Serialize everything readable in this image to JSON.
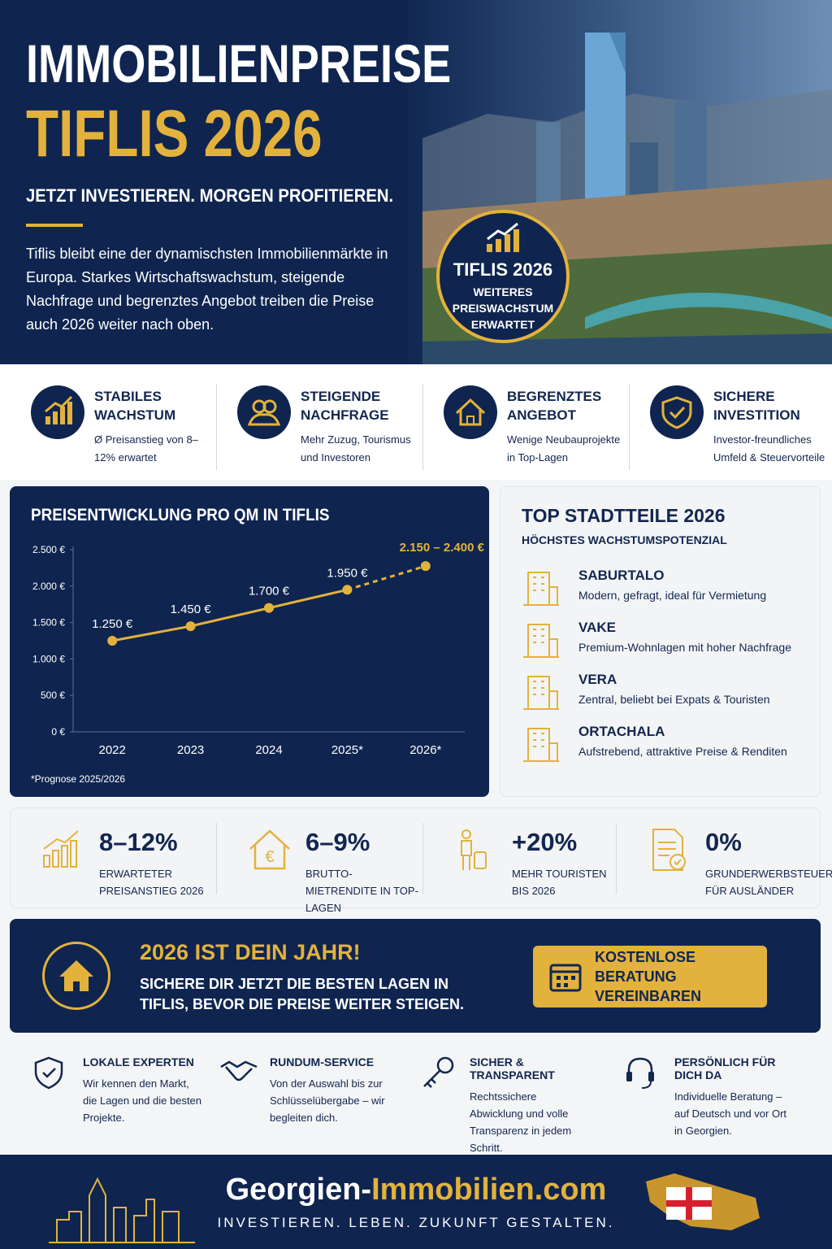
{
  "header": {
    "title_line1": "IMMOBILIENPREISE",
    "title_line2": "TIFLIS 2026",
    "tagline": "JETZT INVESTIEREN. MORGEN PROFITIEREN.",
    "intro": "Tiflis bleibt eine der dynamischsten Immobilienmärkte in Europa. Starkes Wirtschaftswachstum, steigende Nachfrage und begrenztes Angebot treiben die Preise auch 2026 weiter nach oben.",
    "badge_title": "TIFLIS 2026",
    "badge_text": "WEITERES PREISWACHSTUM ERWARTET"
  },
  "features": [
    {
      "title": "STABILES WACHSTUM",
      "text": "Ø Preisanstieg von 8–12% erwartet"
    },
    {
      "title": "STEIGENDE NACHFRAGE",
      "text": "Mehr Zuzug, Tourismus und Investoren"
    },
    {
      "title": "BEGRENZTES ANGEBOT",
      "text": "Wenige Neubauprojekte in Top-Lagen"
    },
    {
      "title": "SICHERE INVESTITION",
      "text": "Investor-freundliches Umfeld & Steuervorteile"
    }
  ],
  "chart_data": {
    "type": "line",
    "title": "PREISENTWICKLUNG PRO QM IN TIFLIS",
    "categories": [
      "2022",
      "2023",
      "2024",
      "2025*",
      "2026*"
    ],
    "values": [
      1250,
      1450,
      1700,
      1950,
      2275
    ],
    "value_labels": [
      "1.250 €",
      "1.450 €",
      "1.700 €",
      "1.950 €",
      "2.150 – 2.400 €"
    ],
    "color": "#e3b23c",
    "ylim": [
      0,
      2500
    ],
    "yticks": [
      {
        "value": 0,
        "label": "0 €"
      },
      {
        "value": 500,
        "label": "500 €"
      },
      {
        "value": 1000,
        "label": "1.000 €"
      },
      {
        "value": 1500,
        "label": "1.500 €"
      },
      {
        "value": 2000,
        "label": "2.000 €"
      },
      {
        "value": 2500,
        "label": "2.500 €"
      }
    ],
    "note": "*Prognose 2025/2026"
  },
  "districts": {
    "title": "TOP STADTTEILE 2026",
    "subtitle": "HÖCHSTES WACHSTUMSPOTENZIAL",
    "items": [
      {
        "name": "SABURTALO",
        "text": "Modern, gefragt, ideal für Vermietung"
      },
      {
        "name": "VAKE",
        "text": "Premium-Wohnlagen mit hoher Nachfrage"
      },
      {
        "name": "VERA",
        "text": "Zentral, beliebt bei Expats & Touristen"
      },
      {
        "name": "ORTACHALA",
        "text": "Aufstrebend, attraktive Preise & Renditen"
      }
    ]
  },
  "stats": [
    {
      "value": "8–12%",
      "label": "ERWARTETER PREISANSTIEG 2026"
    },
    {
      "value": "6–9%",
      "label": "BRUTTO-MIETRENDITE IN TOP-LAGEN"
    },
    {
      "value": "+20%",
      "label": "MEHR TOURISTEN BIS 2026"
    },
    {
      "value": "0%",
      "label": "GRUNDERWERBSTEUER FÜR AUSLÄNDER"
    }
  ],
  "cta": {
    "title": "2026 IST DEIN JAHR!",
    "text": "SICHERE DIR JETZT DIE BESTEN LAGEN IN TIFLIS, BEVOR DIE PREISE WEITER STEIGEN.",
    "button": "KOSTENLOSE BERATUNG VEREINBAREN"
  },
  "services": [
    {
      "title": "LOKALE EXPERTEN",
      "text": "Wir kennen den Markt, die Lagen und die besten Projekte."
    },
    {
      "title": "RUNDUM-SERVICE",
      "text": "Von der Auswahl bis zur Schlüsselübergabe – wir begleiten dich."
    },
    {
      "title": "SICHER & TRANSPARENT",
      "text": "Rechtssichere Abwicklung und volle Transparenz in jedem Schritt."
    },
    {
      "title": "PERSÖNLICH FÜR DICH DA",
      "text": "Individuelle Beratung – auf Deutsch und vor Ort in Georgien."
    }
  ],
  "footer": {
    "brand_part1": "Georgien-",
    "brand_part2": "Immobilien.com",
    "slogan": "INVESTIEREN. LEBEN. ZUKUNFT GESTALTEN."
  }
}
